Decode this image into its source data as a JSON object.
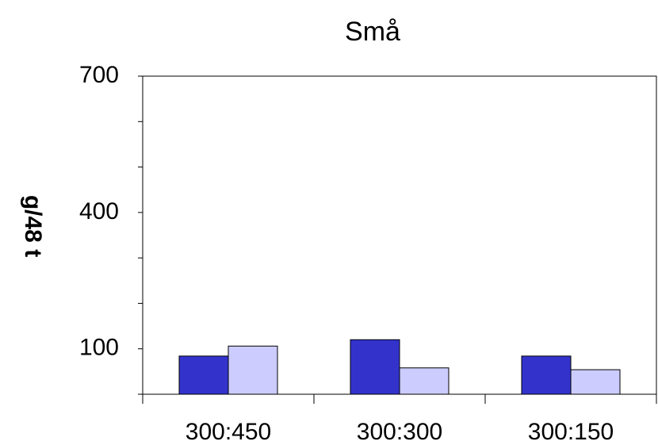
{
  "chart_data": {
    "type": "bar",
    "title": "Små",
    "y_label": "g/48 t",
    "categories": [
      "300:450",
      "300:300",
      "300:150"
    ],
    "series": [
      {
        "color": "#3333cc",
        "values": [
          84,
          120,
          84
        ]
      },
      {
        "color": "#ccccff",
        "values": [
          106,
          58,
          54
        ]
      }
    ],
    "ylim": [
      0,
      700
    ],
    "yticks": [
      100,
      400,
      700
    ],
    "minor_yticks": [
      0,
      200,
      300,
      500,
      600
    ]
  }
}
